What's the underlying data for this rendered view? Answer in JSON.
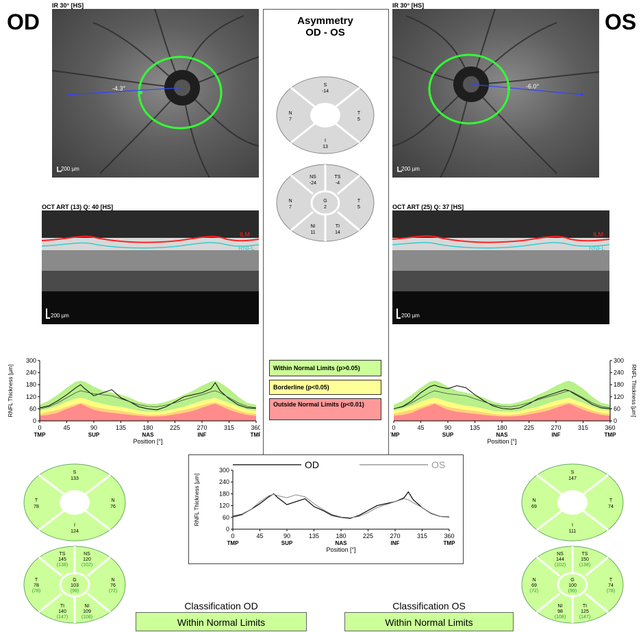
{
  "eyes": {
    "od": "OD",
    "os": "OS"
  },
  "fundus_od": {
    "label": "IR 30° [HS]",
    "scale": "200 µm",
    "angle": "-4.3°"
  },
  "fundus_os": {
    "label": "IR 30° [HS]",
    "scale": "200 µm",
    "angle": "-6.0°"
  },
  "oct_od": {
    "label": "OCT ART (13) Q: 40 [HS]",
    "scale": "200 µm",
    "ilm": "ILM",
    "rnfl": "RNFL"
  },
  "oct_os": {
    "label": "OCT ART (25) Q: 37 [HS]",
    "scale": "200 µm",
    "ilm": "ILM",
    "rnfl": "RNFL"
  },
  "asymmetry": {
    "title_line1": "Asymmetry",
    "title_line2": "OD - OS",
    "quad": {
      "S": "S",
      "S_val": "-14",
      "T": "T",
      "T_val": "5",
      "I": "I",
      "I_val": "13",
      "N": "N",
      "N_val": "7"
    },
    "sect": {
      "NS": "NS",
      "NS_val": "-24",
      "TS": "TS",
      "TS_val": "-4",
      "N": "N",
      "N_val": "7",
      "G": "G",
      "G_val": "2",
      "T": "T",
      "T_val": "5",
      "NI": "NI",
      "NI_val": "11",
      "TI": "TI",
      "TI_val": "14"
    }
  },
  "legend": {
    "within": "Within Normal Limits (p>0.05)",
    "borderline": "Borderline (p<0.05)",
    "outside": "Outside Normal Limits (p<0.01)",
    "colors": {
      "within": "#ccff99",
      "borderline": "#ffff99",
      "outside": "#ff9999"
    }
  },
  "quad_od": {
    "S": "S",
    "S_val": "133",
    "T": "T",
    "T_val": "78",
    "N": "N",
    "N_val": "76",
    "I": "I",
    "I_val": "124"
  },
  "quad_os": {
    "S": "S",
    "S_val": "147",
    "N": "N",
    "N_val": "69",
    "T": "T",
    "T_val": "74",
    "I": "I",
    "I_val": "111"
  },
  "sect_od": {
    "TS": "TS",
    "TS_val": "145",
    "TS_ref": "(138)",
    "NS": "NS",
    "NS_val": "120",
    "NS_ref": "(102)",
    "T": "T",
    "T_val": "78",
    "T_ref": "(78)",
    "G": "G",
    "G_val": "103",
    "G_ref": "(99)",
    "N": "N",
    "N_val": "76",
    "N_ref": "(72)",
    "TI": "TI",
    "TI_val": "140",
    "TI_ref": "(147)",
    "NI": "NI",
    "NI_val": "109",
    "NI_ref": "(108)"
  },
  "sect_os": {
    "NS": "NS",
    "NS_val": "144",
    "NS_ref": "(102)",
    "TS": "TS",
    "TS_val": "150",
    "TS_ref": "(138)",
    "N": "N",
    "N_val": "69",
    "N_ref": "(72)",
    "G": "G",
    "G_val": "100",
    "G_ref": "(99)",
    "T": "T",
    "T_val": "74",
    "T_ref": "(78)",
    "NI": "NI",
    "NI_val": "98",
    "NI_ref": "(108)",
    "TI": "TI",
    "TI_val": "125",
    "TI_ref": "(147)"
  },
  "classification": {
    "od_title": "Classification OD",
    "od_result": "Within Normal Limits",
    "os_title": "Classification OS",
    "os_result": "Within Normal Limits"
  },
  "chart_data": [
    {
      "type": "line",
      "id": "od",
      "ylabel": "RNFL Thickness [µm]",
      "xlabel": "Position [°]",
      "ylim": [
        0,
        300
      ],
      "xlim": [
        0,
        360
      ],
      "yticks": [
        0,
        60,
        120,
        180,
        240,
        300
      ],
      "xticks": [
        0,
        45,
        90,
        135,
        180,
        225,
        270,
        315,
        360
      ],
      "region_labels": [
        "TMP",
        "SUP",
        "NAS",
        "INF",
        "TMP"
      ],
      "region_positions": [
        0,
        90,
        180,
        270,
        360
      ],
      "x": [
        0,
        15,
        30,
        45,
        60,
        68,
        75,
        90,
        105,
        120,
        135,
        150,
        165,
        180,
        195,
        210,
        225,
        240,
        255,
        270,
        285,
        292,
        300,
        315,
        330,
        345,
        360
      ],
      "normal_upper": [
        80,
        100,
        130,
        165,
        195,
        200,
        195,
        170,
        150,
        140,
        130,
        115,
        95,
        85,
        85,
        95,
        110,
        130,
        150,
        175,
        195,
        200,
        190,
        160,
        120,
        90,
        80
      ],
      "normal_lower": [
        50,
        60,
        75,
        95,
        110,
        115,
        110,
        95,
        85,
        75,
        70,
        60,
        50,
        45,
        45,
        50,
        60,
        70,
        85,
        100,
        110,
        115,
        105,
        90,
        70,
        55,
        50
      ],
      "borderline_lower": [
        35,
        45,
        55,
        70,
        85,
        90,
        85,
        70,
        62,
        55,
        50,
        42,
        35,
        30,
        30,
        35,
        45,
        55,
        65,
        78,
        90,
        92,
        85,
        70,
        52,
        40,
        35
      ],
      "outside_upper": [
        25,
        30,
        40,
        60,
        75,
        85,
        75,
        55,
        45,
        40,
        35,
        30,
        25,
        22,
        22,
        25,
        32,
        40,
        50,
        65,
        80,
        85,
        75,
        55,
        40,
        30,
        25
      ],
      "series": [
        {
          "values": [
            65,
            75,
            100,
            130,
            165,
            180,
            160,
            125,
            140,
            155,
            115,
            95,
            70,
            60,
            55,
            70,
            95,
            120,
            130,
            140,
            160,
            190,
            150,
            110,
            80,
            65,
            62
          ]
        },
        {
          "values": [
            60,
            70,
            90,
            115,
            140,
            150,
            145,
            135,
            130,
            125,
            110,
            95,
            80,
            72,
            70,
            78,
            90,
            105,
            118,
            130,
            145,
            150,
            140,
            115,
            90,
            72,
            65
          ]
        }
      ]
    },
    {
      "type": "line",
      "id": "os",
      "ylabel": "RNFL Thickness [µm]",
      "xlabel": "Position [°]",
      "ylim": [
        0,
        300
      ],
      "xlim": [
        0,
        360
      ],
      "yticks": [
        0,
        60,
        120,
        180,
        240,
        300
      ],
      "xticks": [
        0,
        45,
        90,
        135,
        180,
        225,
        270,
        315,
        360
      ],
      "region_labels": [
        "TMP",
        "SUP",
        "NAS",
        "INF",
        "TMP"
      ],
      "region_positions": [
        0,
        90,
        180,
        270,
        360
      ],
      "x": [
        0,
        15,
        30,
        45,
        60,
        68,
        75,
        90,
        105,
        120,
        135,
        150,
        165,
        180,
        195,
        210,
        225,
        240,
        255,
        270,
        285,
        292,
        300,
        315,
        330,
        345,
        360
      ],
      "normal_upper": [
        80,
        100,
        130,
        165,
        195,
        200,
        195,
        170,
        150,
        140,
        130,
        115,
        95,
        85,
        85,
        95,
        110,
        130,
        150,
        175,
        195,
        200,
        190,
        160,
        120,
        90,
        80
      ],
      "normal_lower": [
        50,
        60,
        75,
        95,
        110,
        115,
        110,
        95,
        85,
        75,
        70,
        60,
        50,
        45,
        45,
        50,
        60,
        70,
        85,
        100,
        110,
        115,
        105,
        90,
        70,
        55,
        50
      ],
      "borderline_lower": [
        35,
        45,
        55,
        70,
        85,
        90,
        85,
        70,
        62,
        55,
        50,
        42,
        35,
        30,
        30,
        35,
        45,
        55,
        65,
        78,
        90,
        92,
        85,
        70,
        52,
        40,
        35
      ],
      "outside_upper": [
        25,
        30,
        40,
        60,
        75,
        85,
        75,
        55,
        45,
        40,
        35,
        30,
        25,
        22,
        22,
        25,
        32,
        40,
        50,
        65,
        80,
        85,
        75,
        55,
        40,
        30,
        25
      ],
      "series": [
        {
          "values": [
            60,
            72,
            100,
            140,
            170,
            178,
            170,
            160,
            175,
            165,
            130,
            100,
            75,
            62,
            58,
            65,
            85,
            110,
            125,
            140,
            155,
            150,
            135,
            110,
            82,
            65,
            60
          ]
        },
        {
          "values": [
            60,
            70,
            90,
            115,
            140,
            150,
            145,
            135,
            130,
            125,
            110,
            95,
            80,
            72,
            70,
            78,
            90,
            105,
            118,
            130,
            145,
            150,
            140,
            115,
            90,
            72,
            65
          ]
        }
      ]
    },
    {
      "type": "line",
      "id": "compare",
      "ylabel": "RNFL Thickness [µm]",
      "xlabel": "Position [°]",
      "ylim": [
        0,
        300
      ],
      "xlim": [
        0,
        360
      ],
      "yticks": [
        0,
        60,
        120,
        180,
        240,
        300
      ],
      "xticks": [
        0,
        45,
        90,
        135,
        180,
        225,
        270,
        315,
        360
      ],
      "region_labels": [
        "TMP",
        "SUP",
        "NAS",
        "INF",
        "TMP"
      ],
      "region_positions": [
        0,
        90,
        180,
        270,
        360
      ],
      "x": [
        0,
        15,
        30,
        45,
        60,
        68,
        75,
        90,
        105,
        120,
        135,
        150,
        165,
        180,
        195,
        210,
        225,
        240,
        255,
        270,
        285,
        292,
        300,
        315,
        330,
        345,
        360
      ],
      "series": [
        {
          "name": "OD",
          "values": [
            65,
            75,
            100,
            130,
            165,
            180,
            160,
            125,
            140,
            155,
            115,
            95,
            70,
            60,
            55,
            70,
            95,
            120,
            130,
            140,
            160,
            190,
            150,
            110,
            80,
            65,
            62
          ]
        },
        {
          "name": "OS",
          "values": [
            60,
            72,
            100,
            140,
            170,
            178,
            170,
            160,
            175,
            165,
            130,
            100,
            75,
            62,
            58,
            65,
            85,
            110,
            125,
            140,
            155,
            150,
            135,
            110,
            82,
            65,
            60
          ]
        }
      ]
    }
  ]
}
